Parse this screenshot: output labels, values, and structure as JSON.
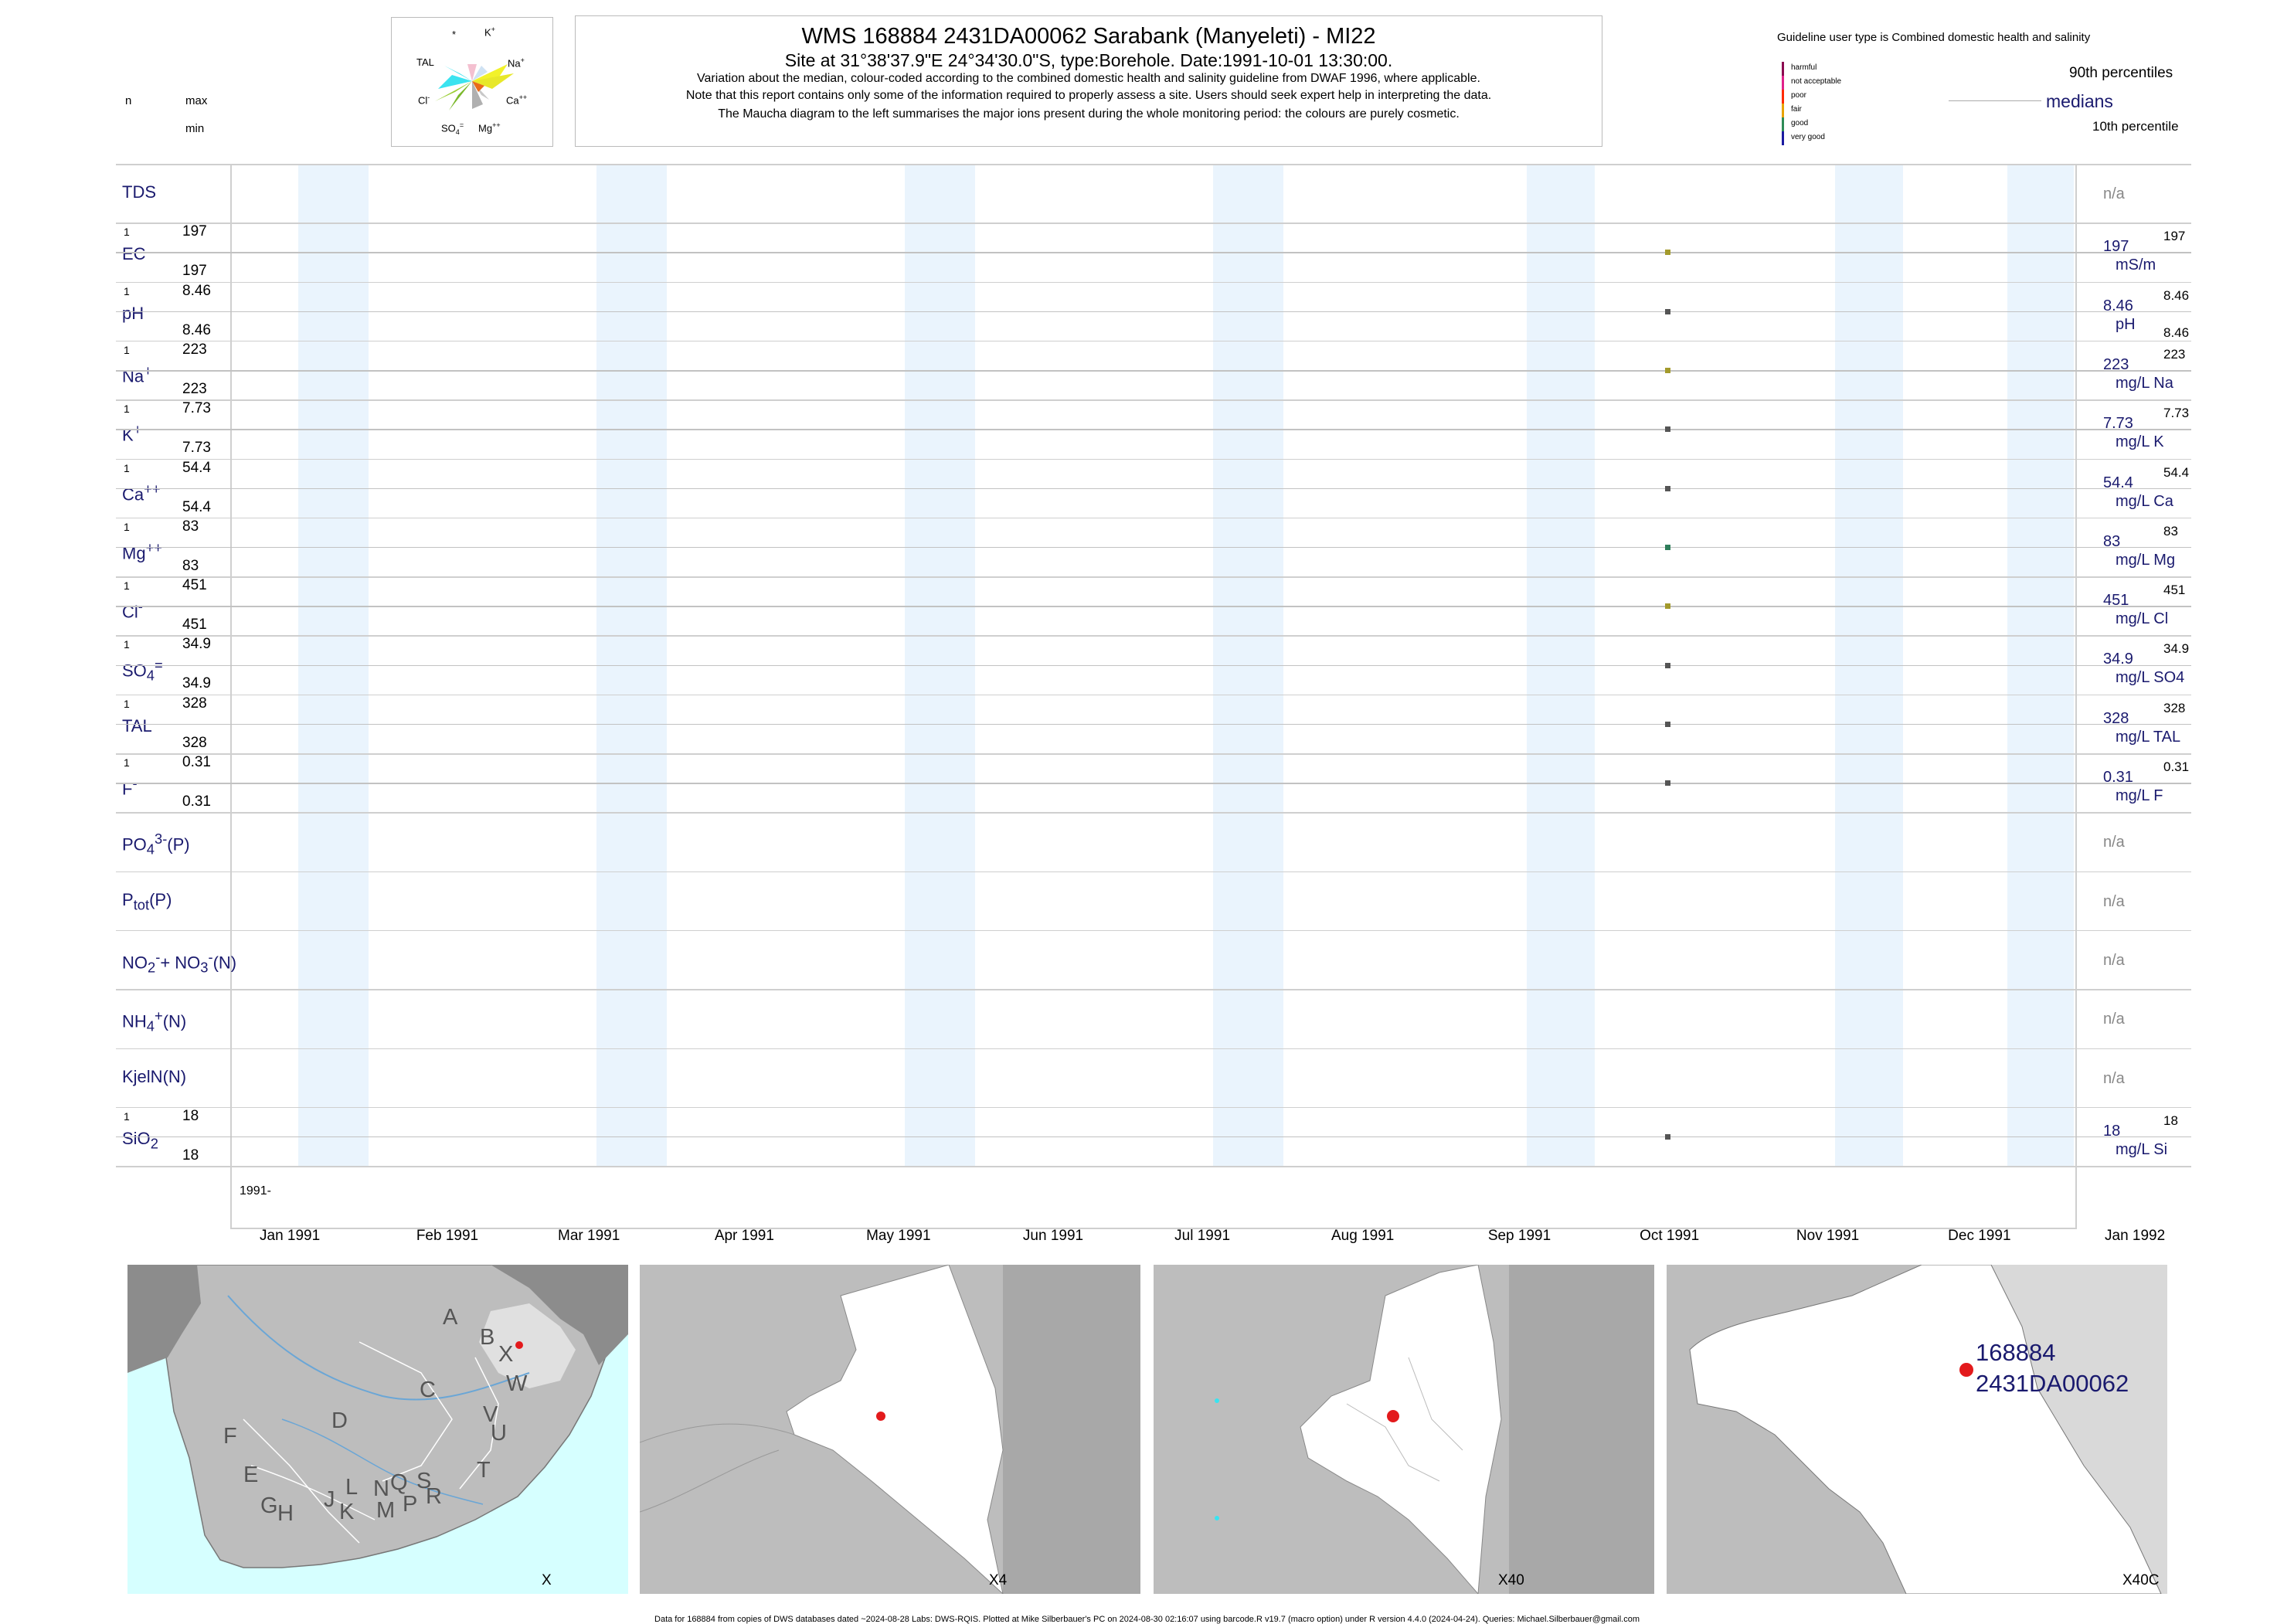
{
  "header": {
    "title": "WMS 168884 2431DA00062 Sarabank (Manyeleti) - MI22",
    "site": "Site at 31°38'37.9\"E 24°34'30.0\"S, type:Borehole. Date:1991-10-01 13:30:00.",
    "line1": "Variation about the median,  colour-coded according to the combined domestic health and salinity guideline from DWAF 1996, where applicable.",
    "line2": "Note that this report contains only some of the information required to properly assess a site. Users should seek expert help in interpreting the data.",
    "line3": "The Maucha diagram to the left summarises the major ions present during the whole monitoring period: the colours are purely cosmetic."
  },
  "left_key": {
    "n": "n",
    "max": "max",
    "min": "min"
  },
  "maucha": {
    "labels": {
      "star": "*",
      "k": "K",
      "k_sup": "+",
      "na": "Na",
      "na_sup": "+",
      "tal": "TAL",
      "ca": "Ca",
      "ca_sup": "++",
      "cl": "Cl",
      "cl_sup": "-",
      "so": "SO",
      "so_sub": "4",
      "so_sup": "=",
      "mg": "Mg",
      "mg_sup": "++"
    }
  },
  "guideline": {
    "title": "Guideline user type is Combined domestic health and salinity",
    "classes": [
      {
        "label": "harmful",
        "color": "#8b0a50"
      },
      {
        "label": "not acceptable",
        "color": "#e0218a"
      },
      {
        "label": "poor",
        "color": "#ff2a00"
      },
      {
        "label": "fair",
        "color": "#e8a200"
      },
      {
        "label": "good",
        "color": "#2e8b57"
      },
      {
        "label": "very good",
        "color": "#1a1aa0"
      }
    ],
    "p90": "90th percentiles",
    "medians": "medians",
    "p10": "10th percentile"
  },
  "axis": {
    "year": "1991-",
    "months": [
      "Jan 1991",
      "Feb 1991",
      "Mar 1991",
      "Apr 1991",
      "May 1991",
      "Jun 1991",
      "Jul 1991",
      "Aug 1991",
      "Sep 1991",
      "Oct 1991",
      "Nov 1991",
      "Dec 1991",
      "Jan 1992"
    ]
  },
  "chart_data": {
    "type": "scatter",
    "x_range": [
      "1991-01-01",
      "1992-01-01"
    ],
    "sample_date": "1991-10-01",
    "rows": [
      {
        "name": "TDS",
        "html": "TDS",
        "n": null,
        "max": null,
        "min": null,
        "value": null,
        "median": "n/a"
      },
      {
        "name": "EC",
        "html": "EC",
        "n": "1",
        "max": "197",
        "min": "197",
        "value": 197,
        "median": "197",
        "unit": "mS/m",
        "p90": "197",
        "p10": null,
        "color": "#a39a2c"
      },
      {
        "name": "pH",
        "html": "pH",
        "n": "1",
        "max": "8.46",
        "min": "8.46",
        "value": 8.46,
        "median": "8.46",
        "unit": "pH",
        "p90": "8.46",
        "p10": "8.46",
        "color": "#555555"
      },
      {
        "name": "Na+",
        "html": "Na<sup>+</sup>",
        "n": "1",
        "max": "223",
        "min": "223",
        "value": 223,
        "median": "223",
        "unit": "mg/L Na",
        "p90": "223",
        "p10": null,
        "color": "#a39a2c"
      },
      {
        "name": "K+",
        "html": "K<sup>+</sup>",
        "n": "1",
        "max": "7.73",
        "min": "7.73",
        "value": 7.73,
        "median": "7.73",
        "unit": "mg/L K",
        "p90": "7.73",
        "p10": null,
        "color": "#555555"
      },
      {
        "name": "Ca++",
        "html": "Ca<sup>++</sup>",
        "n": "1",
        "max": "54.4",
        "min": "54.4",
        "value": 54.4,
        "median": "54.4",
        "unit": "mg/L Ca",
        "p90": "54.4",
        "p10": null,
        "color": "#555555"
      },
      {
        "name": "Mg++",
        "html": "Mg<sup>++</sup>",
        "n": "1",
        "max": "83",
        "min": "83",
        "value": 83,
        "median": "83",
        "unit": "mg/L Mg",
        "p90": "83",
        "p10": null,
        "color": "#2e7d5a"
      },
      {
        "name": "Cl-",
        "html": "Cl<sup>-</sup>",
        "n": "1",
        "max": "451",
        "min": "451",
        "value": 451,
        "median": "451",
        "unit": "mg/L Cl",
        "p90": "451",
        "p10": null,
        "color": "#a39a2c"
      },
      {
        "name": "SO4=",
        "html": "SO<sub>4</sub><sup>=</sup>",
        "n": "1",
        "max": "34.9",
        "min": "34.9",
        "value": 34.9,
        "median": "34.9",
        "unit": "mg/L SO4",
        "p90": "34.9",
        "p10": null,
        "color": "#555555"
      },
      {
        "name": "TAL",
        "html": "TAL",
        "n": "1",
        "max": "328",
        "min": "328",
        "value": 328,
        "median": "328",
        "unit": "mg/L TAL",
        "p90": "328",
        "p10": null,
        "color": "#555555"
      },
      {
        "name": "F-",
        "html": "F<sup>-</sup>",
        "n": "1",
        "max": "0.31",
        "min": "0.31",
        "value": 0.31,
        "median": "0.31",
        "unit": "mg/L F",
        "p90": "0.31",
        "p10": null,
        "color": "#555555"
      },
      {
        "name": "PO4(P)",
        "html": "PO<sub>4</sub><sup>3-</sup>(P)",
        "n": null,
        "max": null,
        "min": null,
        "value": null,
        "median": "n/a"
      },
      {
        "name": "Ptot(P)",
        "html": "P<sub>tot</sub>(P)",
        "n": null,
        "max": null,
        "min": null,
        "value": null,
        "median": "n/a"
      },
      {
        "name": "NO2+NO3(N)",
        "html": "NO<sub>2</sub><sup>-</sup>+ NO<sub>3</sub><sup>-</sup>(N)",
        "n": null,
        "max": null,
        "min": null,
        "value": null,
        "median": "n/a"
      },
      {
        "name": "NH4(N)",
        "html": "NH<sub>4</sub><sup>+</sup>(N)",
        "n": null,
        "max": null,
        "min": null,
        "value": null,
        "median": "n/a"
      },
      {
        "name": "KjelN(N)",
        "html": "KjelN(N)",
        "n": null,
        "max": null,
        "min": null,
        "value": null,
        "median": "n/a"
      },
      {
        "name": "SiO2",
        "html": "SiO<sub>2</sub>",
        "n": "1",
        "max": "18",
        "min": "18",
        "value": 18,
        "median": "18",
        "unit": "mg/L Si",
        "p90": "18",
        "p10": null,
        "color": "#555555"
      }
    ]
  },
  "maps": [
    {
      "caption": "X",
      "region_labels": [
        "A",
        "B",
        "X",
        "W",
        "C",
        "V",
        "U",
        "D",
        "T",
        "F",
        "E",
        "L",
        "N",
        "Q",
        "S",
        "R",
        "J",
        "K",
        "M",
        "P",
        "G",
        "H"
      ]
    },
    {
      "caption": "X4"
    },
    {
      "caption": "X40"
    },
    {
      "caption": "X40C",
      "site_id": "168884",
      "site_code": "2431DA00062"
    }
  ],
  "footer": "Data for 168884 from copies of DWS databases dated ~2024-08-28 Labs: DWS-RQIS. Plotted at Mike Silberbauer's PC on 2024-08-30 02:16:07 using barcode.R v19.7 (macro option) under R version 4.4.0 (2024-04-24). Queries: Michael.Silberbauer@gmail.com"
}
